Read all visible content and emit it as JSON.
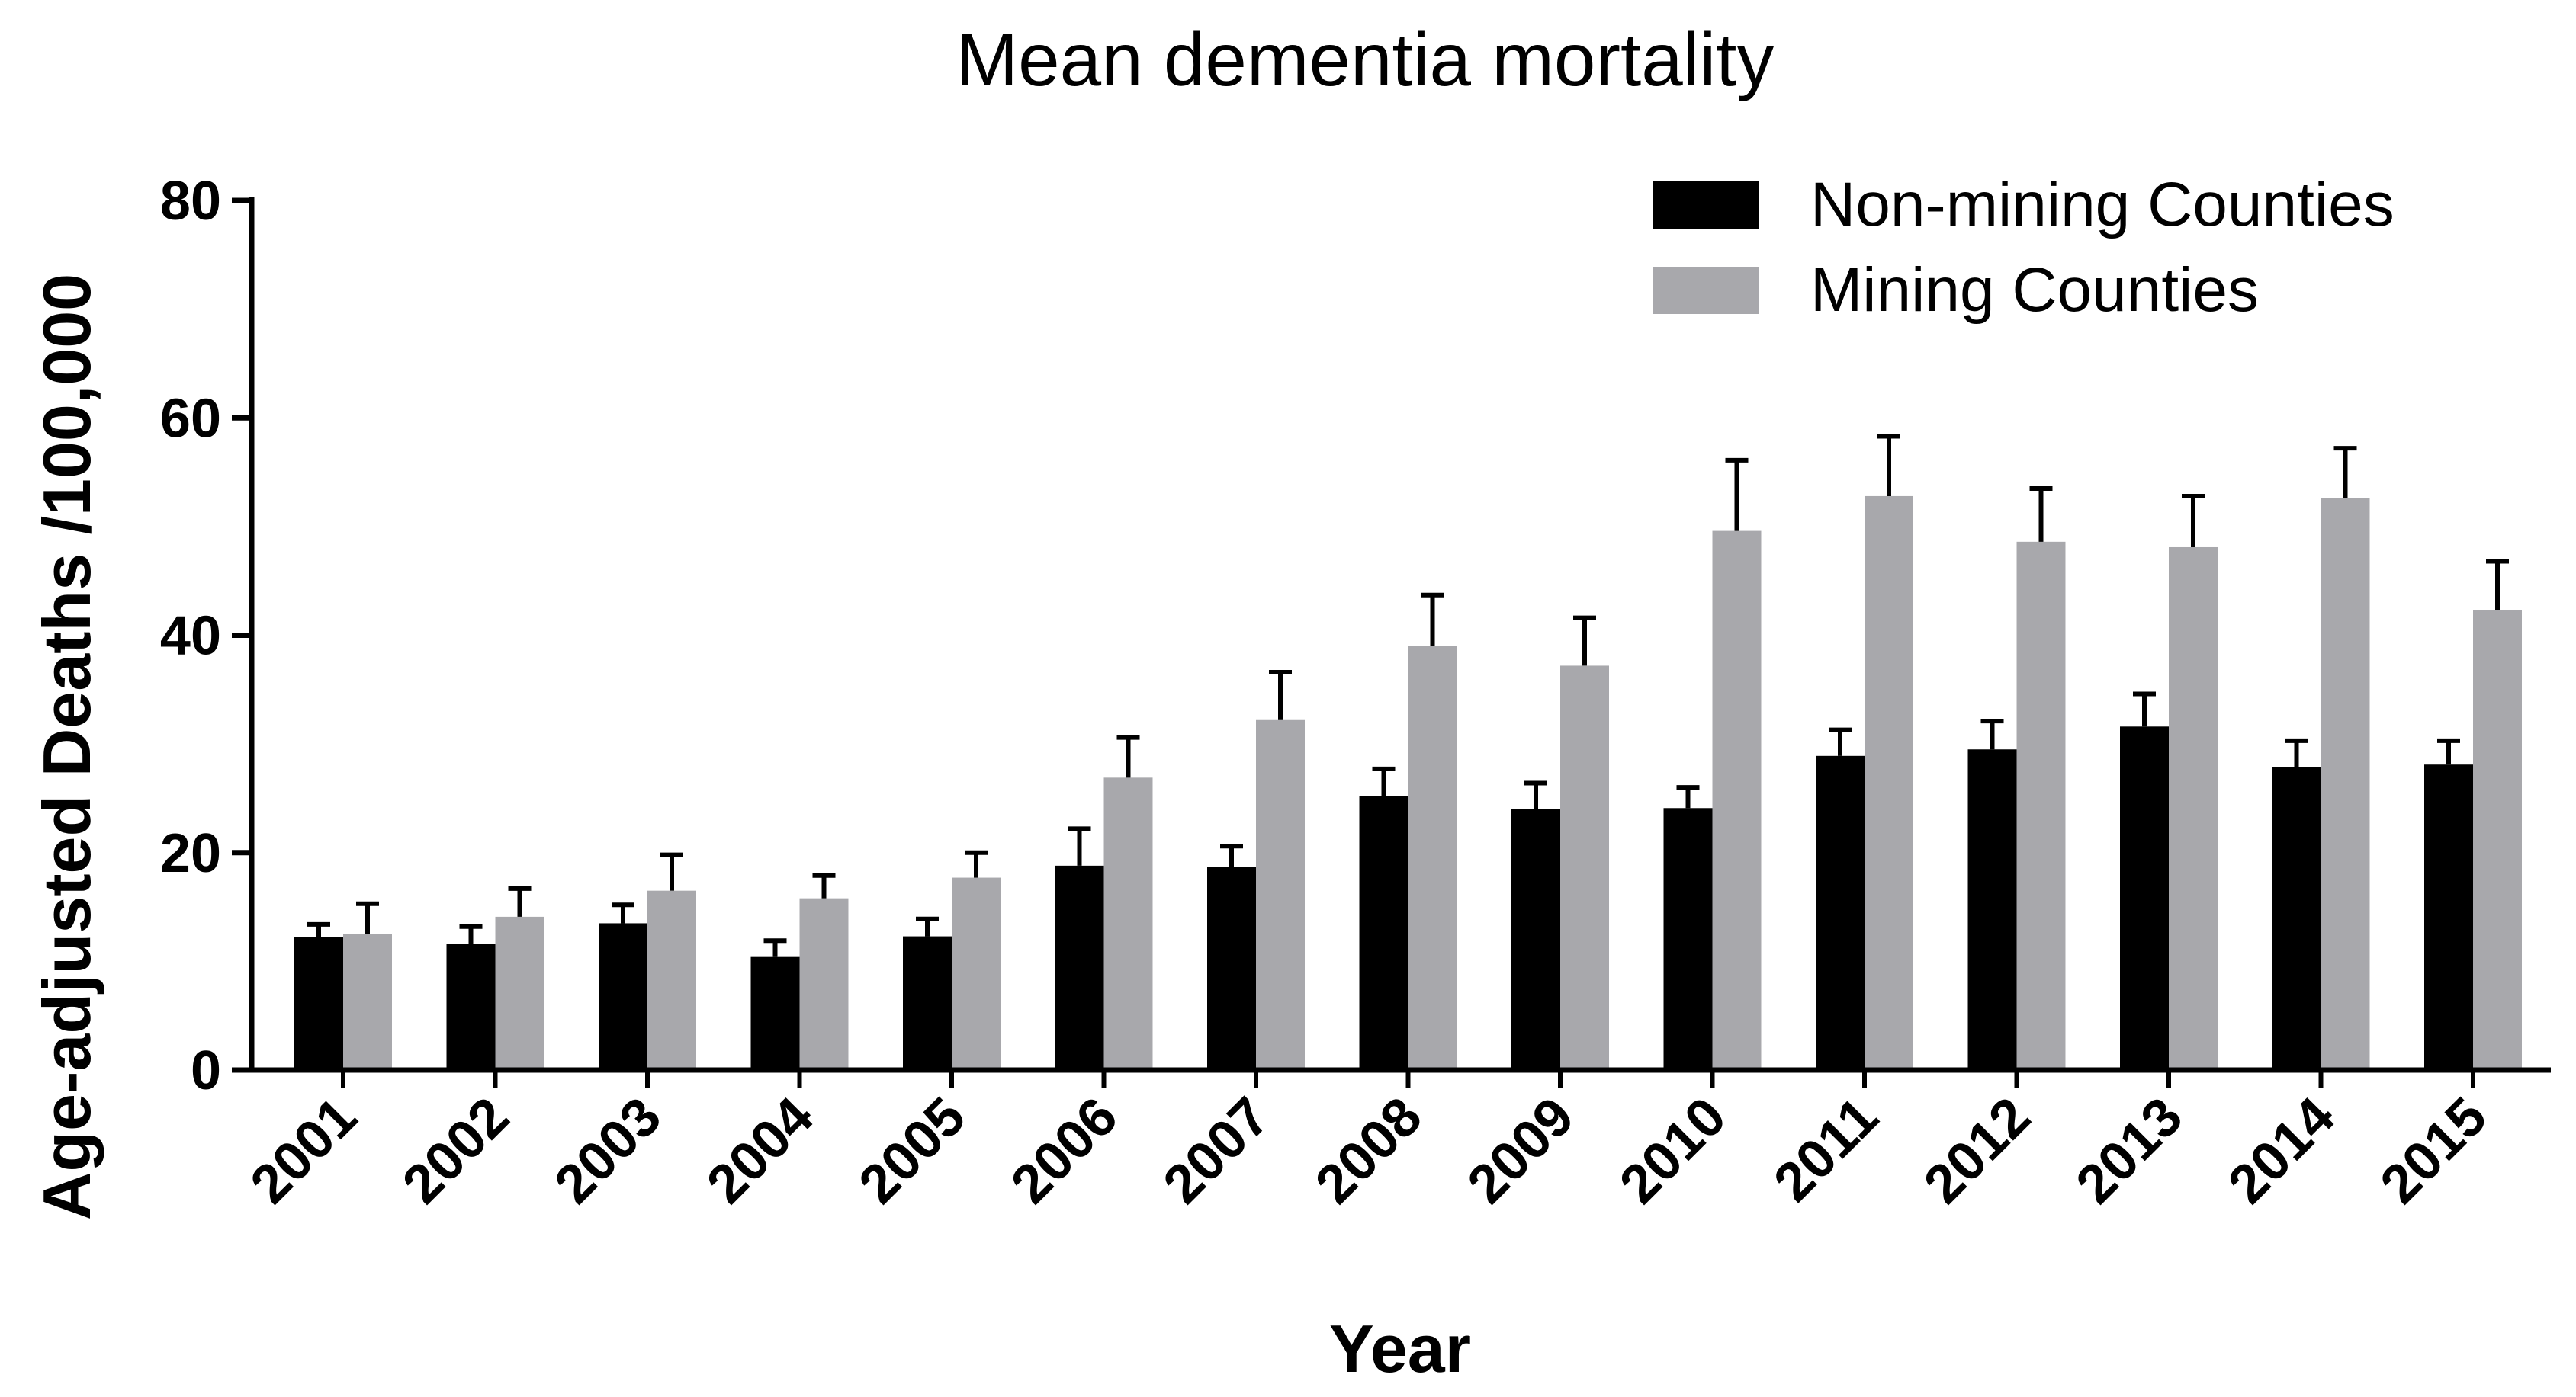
{
  "chart_data": {
    "type": "bar",
    "title": "Mean dementia mortality",
    "xlabel": "Year",
    "ylabel": "Age-adjusted Deaths /100,000",
    "ylim": [
      0,
      80
    ],
    "yticks": [
      0,
      20,
      40,
      60,
      80
    ],
    "categories": [
      "2001",
      "2002",
      "2003",
      "2004",
      "2005",
      "2006",
      "2007",
      "2008",
      "2009",
      "2010",
      "2011",
      "2012",
      "2013",
      "2014",
      "2015"
    ],
    "series": [
      {
        "name": "Non-mining Counties",
        "color": "#000000",
        "values": [
          12.2,
          11.6,
          13.5,
          10.4,
          12.3,
          18.8,
          18.7,
          25.2,
          24.0,
          24.1,
          28.9,
          29.5,
          31.6,
          27.9,
          28.1
        ],
        "errors": [
          1.2,
          1.6,
          1.7,
          1.5,
          1.6,
          3.4,
          1.9,
          2.5,
          2.4,
          1.9,
          2.4,
          2.6,
          3.0,
          2.4,
          2.2
        ]
      },
      {
        "name": "Mining Counties",
        "color": "#a8a8ac",
        "values": [
          12.5,
          14.1,
          16.5,
          15.8,
          17.7,
          26.9,
          32.2,
          39.0,
          37.2,
          49.6,
          52.8,
          48.6,
          48.1,
          52.6,
          42.3
        ],
        "errors": [
          2.8,
          2.6,
          3.3,
          2.1,
          2.3,
          3.7,
          4.4,
          4.7,
          4.4,
          6.5,
          5.5,
          4.9,
          4.7,
          4.6,
          4.5
        ]
      }
    ],
    "legend_position": "top-right",
    "grid": false
  }
}
